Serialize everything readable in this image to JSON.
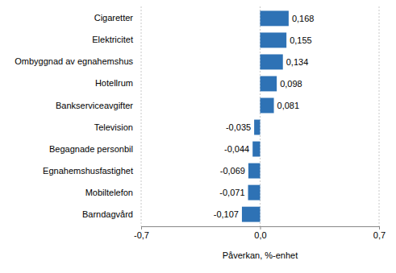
{
  "chart_data": {
    "type": "bar",
    "orientation": "horizontal",
    "x_label": "Påverkan, %-enhet",
    "categories": [
      "Cigaretter",
      "Elektricitet",
      "Ombyggnad av egnahemshus",
      "Hotellrum",
      "Bankserviceavgifter",
      "Television",
      "Begagnade personbil",
      "Egnahemshusfastighet",
      "Mobiltelefon",
      "Barndagvård"
    ],
    "values": [
      0.168,
      0.155,
      0.134,
      0.098,
      0.081,
      -0.035,
      -0.044,
      -0.069,
      -0.071,
      -0.107
    ],
    "value_labels": [
      "0,168",
      "0,155",
      "0,134",
      "0,098",
      "0,081",
      "-0,035",
      "-0,044",
      "-0,069",
      "-0,071",
      "-0,107"
    ],
    "data_labels": true,
    "color": "#2e72b5",
    "xlim": [
      -0.7,
      0.7
    ],
    "xticks": [
      {
        "value": -0.7,
        "label": "-0,7"
      },
      {
        "value": 0,
        "label": "0,0"
      },
      {
        "value": 0.7,
        "label": "0,7"
      }
    ],
    "grid": true
  }
}
